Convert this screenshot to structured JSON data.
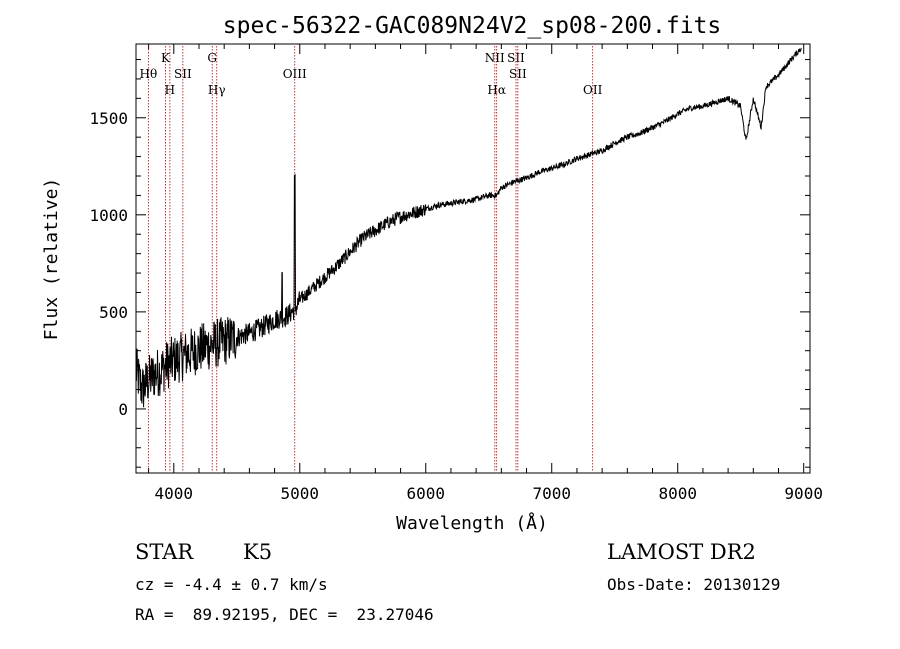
{
  "chart_data": {
    "type": "line",
    "title": "spec-56322-GAC089N24V2_sp08-200.fits",
    "xlabel": "Wavelength (Å)",
    "ylabel": "Flux (relative)",
    "xlim": [
      3700,
      9050
    ],
    "ylim": [
      -330,
      1880
    ],
    "x_ticks": [
      4000,
      5000,
      6000,
      7000,
      8000,
      9000
    ],
    "x_tick_labels": [
      "4000",
      "5000",
      "6000",
      "7000",
      "8000",
      "9000"
    ],
    "y_ticks": [
      0,
      500,
      1000,
      1500
    ],
    "y_tick_labels": [
      "0",
      "500",
      "1000",
      "1500"
    ],
    "grid": false,
    "series": [
      {
        "color": "#000000",
        "x": [
          3700,
          3750,
          3800,
          3850,
          3900,
          3950,
          4000,
          4100,
          4200,
          4300,
          4400,
          4500,
          4600,
          4700,
          4800,
          4900,
          4970,
          5000,
          5100,
          5200,
          5300,
          5400,
          5500,
          5600,
          5700,
          5800,
          5900,
          6000,
          6100,
          6200,
          6300,
          6400,
          6500,
          6563,
          6600,
          6700,
          6800,
          6900,
          7000,
          7100,
          7200,
          7300,
          7400,
          7500,
          7600,
          7700,
          7800,
          7900,
          8000,
          8100,
          8200,
          8300,
          8400,
          8498,
          8542,
          8600,
          8662,
          8700,
          8800,
          8900,
          8980
        ],
        "y": [
          200,
          100,
          150,
          180,
          200,
          230,
          250,
          280,
          310,
          330,
          350,
          370,
          390,
          420,
          460,
          480,
          520,
          560,
          620,
          680,
          740,
          810,
          880,
          920,
          960,
          990,
          1010,
          1030,
          1050,
          1060,
          1070,
          1080,
          1100,
          1100,
          1140,
          1170,
          1190,
          1220,
          1240,
          1260,
          1290,
          1310,
          1330,
          1370,
          1400,
          1420,
          1450,
          1480,
          1520,
          1550,
          1560,
          1580,
          1600,
          1560,
          1380,
          1600,
          1450,
          1660,
          1720,
          1800,
          1860
        ]
      }
    ],
    "absorption_lines": [
      {
        "label": "Hθ",
        "row": 2,
        "x": 3798
      },
      {
        "label": "K",
        "row": 1,
        "x": 3934
      },
      {
        "label": "H",
        "row": 3,
        "x": 3969
      },
      {
        "label": "SII",
        "row": 2,
        "x": 4072
      },
      {
        "label": "G",
        "row": 1,
        "x": 4305
      },
      {
        "label": "Hγ",
        "row": 3,
        "x": 4341
      }
    ],
    "emission_lines": [
      {
        "label": "OIII",
        "row": 2,
        "x": 4960
      },
      {
        "label": "NII",
        "row": 1,
        "x": 6548
      },
      {
        "label": "Hα",
        "row": 3,
        "x": 6563
      },
      {
        "label": "SII",
        "row": 1,
        "x": 6716
      },
      {
        "label": "SII",
        "row": 2,
        "x": 6731
      },
      {
        "label": "OII",
        "row": 3,
        "x": 7325
      }
    ]
  },
  "info": {
    "class_label": "STAR",
    "subclass_label": "K5",
    "survey_label": "LAMOST DR2",
    "cz_text": "cz = -4.4 ± 0.7 km/s",
    "obs_date_text": "Obs-Date: 20130129",
    "coords_text": "RA =  89.92195, DEC =  23.27046"
  }
}
